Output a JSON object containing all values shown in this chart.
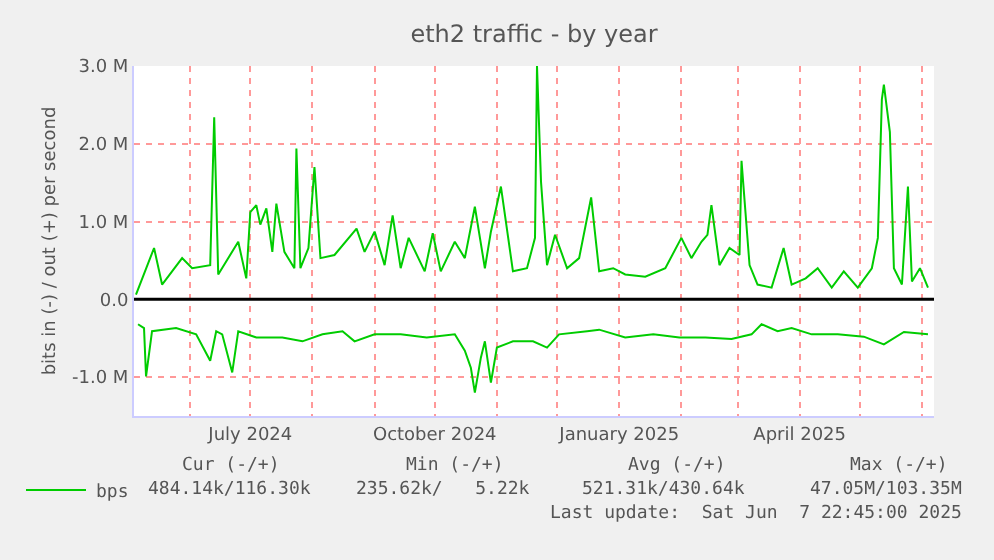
{
  "chart_data": {
    "type": "line",
    "title": "eth2 traffic - by year",
    "ylabel": "bits in (-) / out (+) per second",
    "xlim": [
      "2024-05-04",
      "2025-06-07"
    ],
    "xticks": [
      {
        "value": "2024-06-01",
        "label": null
      },
      {
        "value": "2024-07-01",
        "label": "July 2024"
      },
      {
        "value": "2024-08-01",
        "label": null
      },
      {
        "value": "2024-09-01",
        "label": null
      },
      {
        "value": "2024-10-01",
        "label": "October 2024"
      },
      {
        "value": "2024-11-01",
        "label": null
      },
      {
        "value": "2024-12-01",
        "label": null
      },
      {
        "value": "2025-01-01",
        "label": "January 2025"
      },
      {
        "value": "2025-02-01",
        "label": null
      },
      {
        "value": "2025-03-01",
        "label": null
      },
      {
        "value": "2025-04-01",
        "label": "April 2025"
      },
      {
        "value": "2025-05-01",
        "label": null
      },
      {
        "value": "2025-06-01",
        "label": null
      }
    ],
    "ylim": [
      -1.5,
      3.0
    ],
    "yticks": [
      {
        "value": -1,
        "label": "-1.0 M"
      },
      {
        "value": 0,
        "label": "0.0"
      },
      {
        "value": 1,
        "label": "1.0 M"
      },
      {
        "value": 2,
        "label": "2.0 M"
      },
      {
        "value": 3,
        "label": "3.0 M"
      }
    ],
    "ref_lines": [
      {
        "axis": "y",
        "value": 0,
        "color": "#000000"
      }
    ],
    "grid": true,
    "legend": "bottom left",
    "marker": "none",
    "line_style": "solid",
    "series": [
      {
        "name": "bps",
        "color": "#00cc00",
        "x": [
          "2024-05-05",
          "2024-05-14",
          "2024-05-18",
          "2024-05-28",
          "2024-06-02",
          "2024-06-11",
          "2024-06-13",
          "2024-06-15",
          "2024-06-25",
          "2024-06-29",
          "2024-07-01",
          "2024-07-04",
          "2024-07-06",
          "2024-07-09",
          "2024-07-12",
          "2024-07-14",
          "2024-07-18",
          "2024-07-23",
          "2024-07-24",
          "2024-07-26",
          "2024-07-30",
          "2024-08-02",
          "2024-08-05",
          "2024-08-12",
          "2024-08-23",
          "2024-08-27",
          "2024-09-01",
          "2024-09-06",
          "2024-09-10",
          "2024-09-14",
          "2024-09-18",
          "2024-09-26",
          "2024-09-30",
          "2024-10-04",
          "2024-10-11",
          "2024-10-16",
          "2024-10-21",
          "2024-10-26",
          "2024-10-29",
          "2024-11-03",
          "2024-11-09",
          "2024-11-16",
          "2024-11-20",
          "2024-11-21",
          "2024-11-23",
          "2024-11-26",
          "2024-11-30",
          "2024-12-06",
          "2024-12-12",
          "2024-12-18",
          "2024-12-22",
          "2024-12-29",
          "2025-01-04",
          "2025-01-14",
          "2025-01-24",
          "2025-02-01",
          "2025-02-06",
          "2025-02-11",
          "2025-02-14",
          "2025-02-16",
          "2025-02-20",
          "2025-02-25",
          "2025-03-02",
          "2025-03-03",
          "2025-03-07",
          "2025-03-11",
          "2025-03-18",
          "2025-03-24",
          "2025-03-28",
          "2025-04-04",
          "2025-04-10",
          "2025-04-17",
          "2025-04-23",
          "2025-04-30",
          "2025-05-07",
          "2025-05-10",
          "2025-05-12",
          "2025-05-13",
          "2025-05-16",
          "2025-05-18",
          "2025-05-22",
          "2025-05-25",
          "2025-05-27",
          "2025-05-31",
          "2025-06-04"
        ],
        "values": [
          0.06,
          0.66,
          0.19,
          0.53,
          0.4,
          0.44,
          2.34,
          0.32,
          0.74,
          0.27,
          1.12,
          1.21,
          0.96,
          1.17,
          0.61,
          1.23,
          0.61,
          0.4,
          1.94,
          0.4,
          0.66,
          1.7,
          0.53,
          0.57,
          0.91,
          0.61,
          0.87,
          0.44,
          1.08,
          0.4,
          0.79,
          0.36,
          0.85,
          0.36,
          0.74,
          0.53,
          1.19,
          0.4,
          0.87,
          1.45,
          0.36,
          0.4,
          0.79,
          3.0,
          1.51,
          0.44,
          0.83,
          0.4,
          0.53,
          1.31,
          0.36,
          0.4,
          0.32,
          0.29,
          0.4,
          0.79,
          0.53,
          0.74,
          0.83,
          1.21,
          0.44,
          0.66,
          0.57,
          1.78,
          0.44,
          0.19,
          0.15,
          0.66,
          0.19,
          0.27,
          0.4,
          0.15,
          0.36,
          0.15,
          0.4,
          0.79,
          2.57,
          2.76,
          2.15,
          0.4,
          0.19,
          1.45,
          0.23,
          0.4,
          0.15
        ]
      },
      {
        "color": "#00cc00",
        "x": [
          "2024-05-06",
          "2024-05-09",
          "2024-05-10",
          "2024-05-13",
          "2024-05-25",
          "2024-06-04",
          "2024-06-11",
          "2024-06-14",
          "2024-06-17",
          "2024-06-22",
          "2024-06-25",
          "2024-07-04",
          "2024-07-17",
          "2024-07-27",
          "2024-08-06",
          "2024-08-16",
          "2024-08-22",
          "2024-09-01",
          "2024-09-14",
          "2024-09-27",
          "2024-10-11",
          "2024-10-16",
          "2024-10-19",
          "2024-10-21",
          "2024-10-24",
          "2024-10-26",
          "2024-10-29",
          "2024-11-01",
          "2024-11-09",
          "2024-11-19",
          "2024-11-26",
          "2024-12-02",
          "2024-12-16",
          "2024-12-22",
          "2025-01-04",
          "2025-01-18",
          "2025-01-31",
          "2025-02-13",
          "2025-02-26",
          "2025-03-08",
          "2025-03-13",
          "2025-03-21",
          "2025-03-28",
          "2025-04-07",
          "2025-04-20",
          "2025-05-03",
          "2025-05-13",
          "2025-05-23",
          "2025-06-04"
        ],
        "values": [
          -0.32,
          -0.37,
          -0.99,
          -0.41,
          -0.37,
          -0.45,
          -0.79,
          -0.41,
          -0.45,
          -0.94,
          -0.41,
          -0.49,
          -0.49,
          -0.54,
          -0.45,
          -0.41,
          -0.54,
          -0.45,
          -0.45,
          -0.49,
          -0.45,
          -0.66,
          -0.88,
          -1.2,
          -0.75,
          -0.54,
          -1.07,
          -0.62,
          -0.54,
          -0.54,
          -0.62,
          -0.45,
          -0.41,
          -0.39,
          -0.49,
          -0.45,
          -0.49,
          -0.49,
          -0.51,
          -0.45,
          -0.32,
          -0.41,
          -0.37,
          -0.45,
          -0.45,
          -0.48,
          -0.58,
          -0.42,
          -0.45
        ]
      }
    ],
    "annotations": [
      "Cur (-/+)",
      "Min (-/+)",
      "Avg (-/+)",
      "Max (-/+)",
      "484.14k/116.30k",
      "235.62k/   5.22k",
      "521.31k/430.64k",
      "47.05M/103.35M",
      "Last update:  Sat Jun  7 22:45:00 2025"
    ]
  }
}
